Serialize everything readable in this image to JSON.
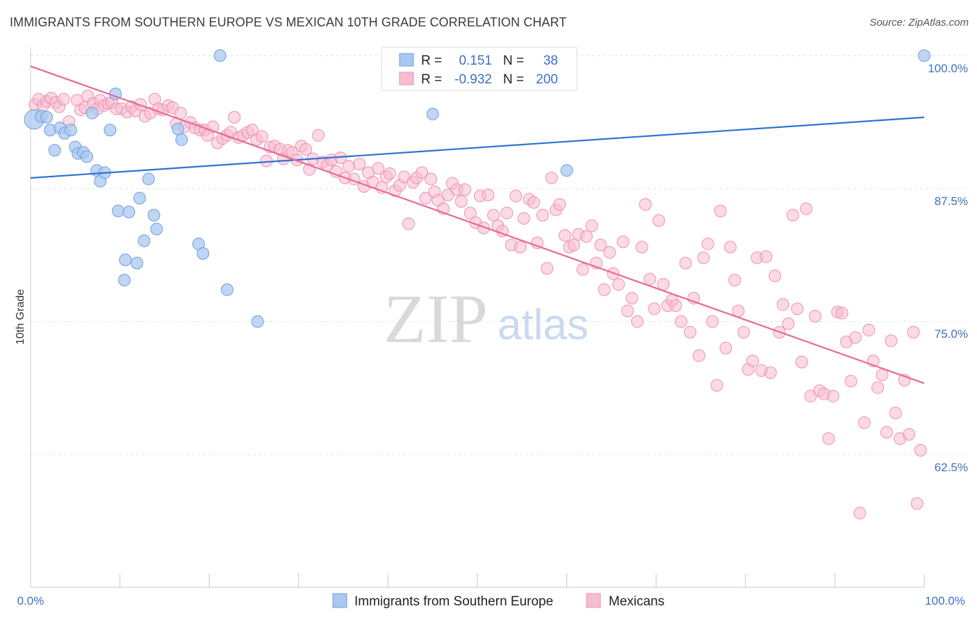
{
  "title": "IMMIGRANTS FROM SOUTHERN EUROPE VS MEXICAN 10TH GRADE CORRELATION CHART",
  "source": "Source: ZipAtlas.com",
  "watermark": {
    "zip": "ZIP",
    "atlas": "atlas"
  },
  "colors": {
    "blue_fill": "#a9c8f0",
    "blue_stroke": "#6f9ee0",
    "blue_line": "#2f72d2",
    "pink_fill": "#f7bcd0",
    "pink_stroke": "#ef8fb0",
    "pink_line": "#e8689a",
    "grid": "#e2e2e2",
    "axis": "#c8c8c8",
    "tick_text": "#3f6fc4"
  },
  "legend": {
    "rows": [
      {
        "r_label": "R =",
        "r_value": "0.151",
        "n_label": "N =",
        "n_value": "38"
      },
      {
        "r_label": "R =",
        "r_value": "-0.932",
        "n_label": "N =",
        "n_value": "200"
      }
    ]
  },
  "bottom_legend": [
    "Immigrants from Southern Europe",
    "Mexicans"
  ],
  "chart_data": {
    "type": "scatter",
    "title": "IMMIGRANTS FROM SOUTHERN EUROPE VS MEXICAN 10TH GRADE CORRELATION CHART",
    "xlabel": "",
    "ylabel": "10th Grade",
    "x_tick_labels": [
      "0.0%",
      "100.0%"
    ],
    "y_tick_labels": [
      "100.0%",
      "87.5%",
      "75.0%",
      "62.5%"
    ],
    "y_ticks": [
      100.0,
      87.5,
      75.0,
      62.5
    ],
    "xlim": [
      0,
      100
    ],
    "ylim": [
      52.5,
      101.5
    ],
    "series": [
      {
        "name": "Immigrants from Southern Europe",
        "color": "blue",
        "R": 0.151,
        "N": 38,
        "trend": {
          "x0": 0,
          "y0": 88.5,
          "x1": 100,
          "y1": 94.2
        },
        "points": [
          [
            0.4,
            94.0
          ],
          [
            1.2,
            94.3
          ],
          [
            1.8,
            94.2
          ],
          [
            2.2,
            93.0
          ],
          [
            2.7,
            91.1
          ],
          [
            3.3,
            93.2
          ],
          [
            3.8,
            92.7
          ],
          [
            4.5,
            93.0
          ],
          [
            5.0,
            91.4
          ],
          [
            5.3,
            90.8
          ],
          [
            5.9,
            90.9
          ],
          [
            6.3,
            90.5
          ],
          [
            6.9,
            94.6
          ],
          [
            7.4,
            89.2
          ],
          [
            7.8,
            88.2
          ],
          [
            8.3,
            89.0
          ],
          [
            8.9,
            93.0
          ],
          [
            9.5,
            96.4
          ],
          [
            9.8,
            85.4
          ],
          [
            10.6,
            80.8
          ],
          [
            10.5,
            78.9
          ],
          [
            11.0,
            85.3
          ],
          [
            11.9,
            80.5
          ],
          [
            12.2,
            86.6
          ],
          [
            12.7,
            82.6
          ],
          [
            13.2,
            88.4
          ],
          [
            13.8,
            85.0
          ],
          [
            14.1,
            83.7
          ],
          [
            16.5,
            93.1
          ],
          [
            16.9,
            92.1
          ],
          [
            18.8,
            82.3
          ],
          [
            19.3,
            81.4
          ],
          [
            21.2,
            100.0
          ],
          [
            22.0,
            78.0
          ],
          [
            25.4,
            75.0
          ],
          [
            45.0,
            94.5
          ],
          [
            60.0,
            89.2
          ],
          [
            100.0,
            100.0
          ]
        ]
      },
      {
        "name": "Mexicans",
        "color": "pink",
        "R": -0.932,
        "N": 200,
        "trend": {
          "x0": 0,
          "y0": 99.0,
          "x1": 100,
          "y1": 69.2
        },
        "points": [
          [
            0.5,
            95.4
          ],
          [
            0.9,
            95.9
          ],
          [
            1.4,
            95.3
          ],
          [
            1.8,
            95.7
          ],
          [
            2.3,
            96.0
          ],
          [
            2.8,
            95.6
          ],
          [
            3.2,
            95.2
          ],
          [
            3.7,
            95.9
          ],
          [
            4.3,
            93.8
          ],
          [
            5.2,
            95.8
          ],
          [
            5.6,
            94.9
          ],
          [
            6.1,
            95.1
          ],
          [
            6.4,
            96.2
          ],
          [
            7.0,
            95.5
          ],
          [
            7.5,
            95.0
          ],
          [
            7.8,
            95.8
          ],
          [
            8.2,
            95.3
          ],
          [
            8.7,
            95.5
          ],
          [
            9.1,
            95.6
          ],
          [
            9.6,
            95.0
          ],
          [
            10.2,
            95.0
          ],
          [
            10.8,
            94.7
          ],
          [
            11.3,
            95.2
          ],
          [
            11.7,
            94.8
          ],
          [
            12.3,
            95.4
          ],
          [
            12.8,
            94.3
          ],
          [
            13.4,
            94.6
          ],
          [
            13.9,
            95.9
          ],
          [
            14.3,
            95.0
          ],
          [
            14.8,
            94.9
          ],
          [
            15.4,
            95.3
          ],
          [
            15.9,
            95.1
          ],
          [
            16.3,
            93.6
          ],
          [
            16.8,
            94.6
          ],
          [
            17.2,
            93.3
          ],
          [
            17.9,
            93.7
          ],
          [
            18.4,
            93.2
          ],
          [
            19.0,
            93.0
          ],
          [
            19.5,
            93.0
          ],
          [
            19.8,
            92.5
          ],
          [
            20.4,
            93.3
          ],
          [
            20.9,
            91.8
          ],
          [
            21.5,
            92.2
          ],
          [
            22.0,
            92.5
          ],
          [
            22.4,
            92.8
          ],
          [
            22.8,
            94.2
          ],
          [
            23.3,
            92.3
          ],
          [
            23.8,
            92.5
          ],
          [
            24.3,
            92.8
          ],
          [
            24.8,
            93.0
          ],
          [
            25.3,
            92.1
          ],
          [
            25.9,
            92.4
          ],
          [
            26.4,
            90.1
          ],
          [
            26.8,
            91.4
          ],
          [
            27.3,
            91.5
          ],
          [
            27.9,
            91.2
          ],
          [
            28.3,
            90.3
          ],
          [
            28.8,
            91.1
          ],
          [
            29.3,
            90.9
          ],
          [
            29.8,
            90.2
          ],
          [
            30.3,
            91.5
          ],
          [
            30.8,
            91.2
          ],
          [
            31.2,
            89.3
          ],
          [
            31.6,
            90.3
          ],
          [
            32.2,
            92.5
          ],
          [
            32.7,
            90.0
          ],
          [
            33.2,
            89.7
          ],
          [
            33.7,
            90.2
          ],
          [
            34.2,
            89.1
          ],
          [
            34.7,
            90.4
          ],
          [
            35.2,
            88.5
          ],
          [
            35.6,
            89.6
          ],
          [
            36.2,
            88.4
          ],
          [
            36.8,
            89.8
          ],
          [
            37.3,
            87.7
          ],
          [
            37.8,
            89.0
          ],
          [
            38.3,
            88.1
          ],
          [
            38.9,
            89.4
          ],
          [
            39.3,
            87.6
          ],
          [
            39.8,
            88.6
          ],
          [
            40.2,
            88.9
          ],
          [
            40.8,
            87.3
          ],
          [
            41.3,
            87.8
          ],
          [
            41.8,
            88.6
          ],
          [
            42.3,
            84.2
          ],
          [
            42.8,
            88.1
          ],
          [
            43.2,
            88.5
          ],
          [
            43.8,
            89.0
          ],
          [
            44.2,
            86.6
          ],
          [
            44.8,
            88.4
          ],
          [
            45.2,
            87.2
          ],
          [
            45.6,
            86.4
          ],
          [
            46.2,
            85.6
          ],
          [
            46.7,
            86.9
          ],
          [
            47.2,
            88.0
          ],
          [
            47.7,
            87.4
          ],
          [
            48.2,
            86.3
          ],
          [
            48.6,
            87.4
          ],
          [
            49.2,
            85.2
          ],
          [
            49.8,
            84.3
          ],
          [
            50.3,
            86.8
          ],
          [
            50.7,
            83.8
          ],
          [
            51.2,
            86.9
          ],
          [
            51.8,
            85.0
          ],
          [
            52.3,
            84.0
          ],
          [
            52.8,
            83.5
          ],
          [
            53.3,
            85.2
          ],
          [
            53.8,
            82.2
          ],
          [
            54.3,
            86.8
          ],
          [
            54.8,
            82.0
          ],
          [
            55.2,
            84.7
          ],
          [
            55.8,
            86.5
          ],
          [
            56.3,
            86.2
          ],
          [
            56.7,
            82.4
          ],
          [
            57.3,
            85.0
          ],
          [
            57.8,
            80.0
          ],
          [
            58.3,
            88.5
          ],
          [
            58.8,
            85.5
          ],
          [
            59.2,
            86.0
          ],
          [
            59.8,
            83.1
          ],
          [
            60.3,
            82.0
          ],
          [
            60.8,
            82.2
          ],
          [
            61.3,
            83.2
          ],
          [
            61.8,
            79.9
          ],
          [
            62.2,
            83.0
          ],
          [
            62.8,
            84.0
          ],
          [
            63.3,
            80.5
          ],
          [
            63.8,
            82.2
          ],
          [
            64.2,
            78.0
          ],
          [
            64.8,
            81.5
          ],
          [
            65.2,
            79.5
          ],
          [
            65.8,
            78.5
          ],
          [
            66.3,
            82.5
          ],
          [
            66.8,
            76.0
          ],
          [
            67.3,
            77.2
          ],
          [
            67.9,
            75.0
          ],
          [
            68.4,
            82.0
          ],
          [
            68.8,
            86.0
          ],
          [
            69.3,
            79.0
          ],
          [
            69.8,
            76.2
          ],
          [
            70.3,
            84.5
          ],
          [
            70.8,
            78.5
          ],
          [
            71.3,
            76.5
          ],
          [
            71.8,
            77.0
          ],
          [
            72.2,
            76.5
          ],
          [
            72.8,
            75.0
          ],
          [
            73.3,
            80.5
          ],
          [
            73.8,
            74.0
          ],
          [
            74.2,
            77.2
          ],
          [
            74.8,
            71.8
          ],
          [
            75.3,
            81.0
          ],
          [
            75.8,
            82.3
          ],
          [
            76.3,
            75.0
          ],
          [
            76.8,
            69.0
          ],
          [
            77.2,
            85.4
          ],
          [
            77.8,
            72.5
          ],
          [
            78.3,
            82.0
          ],
          [
            78.8,
            78.9
          ],
          [
            79.2,
            76.0
          ],
          [
            79.8,
            74.0
          ],
          [
            80.3,
            70.5
          ],
          [
            80.8,
            71.3
          ],
          [
            81.3,
            81.0
          ],
          [
            81.8,
            70.4
          ],
          [
            82.3,
            81.1
          ],
          [
            82.8,
            70.2
          ],
          [
            83.3,
            79.3
          ],
          [
            83.8,
            74.0
          ],
          [
            84.2,
            76.6
          ],
          [
            84.8,
            74.8
          ],
          [
            85.3,
            85.0
          ],
          [
            85.8,
            76.2
          ],
          [
            86.3,
            71.2
          ],
          [
            86.8,
            85.6
          ],
          [
            87.3,
            68.0
          ],
          [
            87.8,
            75.5
          ],
          [
            88.3,
            68.5
          ],
          [
            88.8,
            68.2
          ],
          [
            89.3,
            64.0
          ],
          [
            89.8,
            68.0
          ],
          [
            90.3,
            75.9
          ],
          [
            90.8,
            75.8
          ],
          [
            91.3,
            73.1
          ],
          [
            91.8,
            69.4
          ],
          [
            92.3,
            73.5
          ],
          [
            92.8,
            57.0
          ],
          [
            93.3,
            65.5
          ],
          [
            93.8,
            74.2
          ],
          [
            94.3,
            71.3
          ],
          [
            94.8,
            68.8
          ],
          [
            95.3,
            70.0
          ],
          [
            95.8,
            64.6
          ],
          [
            96.3,
            73.2
          ],
          [
            96.8,
            66.4
          ],
          [
            97.3,
            64.0
          ],
          [
            97.8,
            69.5
          ],
          [
            98.3,
            64.4
          ],
          [
            98.8,
            74.0
          ],
          [
            99.2,
            57.9
          ],
          [
            99.6,
            62.9
          ]
        ]
      }
    ]
  }
}
